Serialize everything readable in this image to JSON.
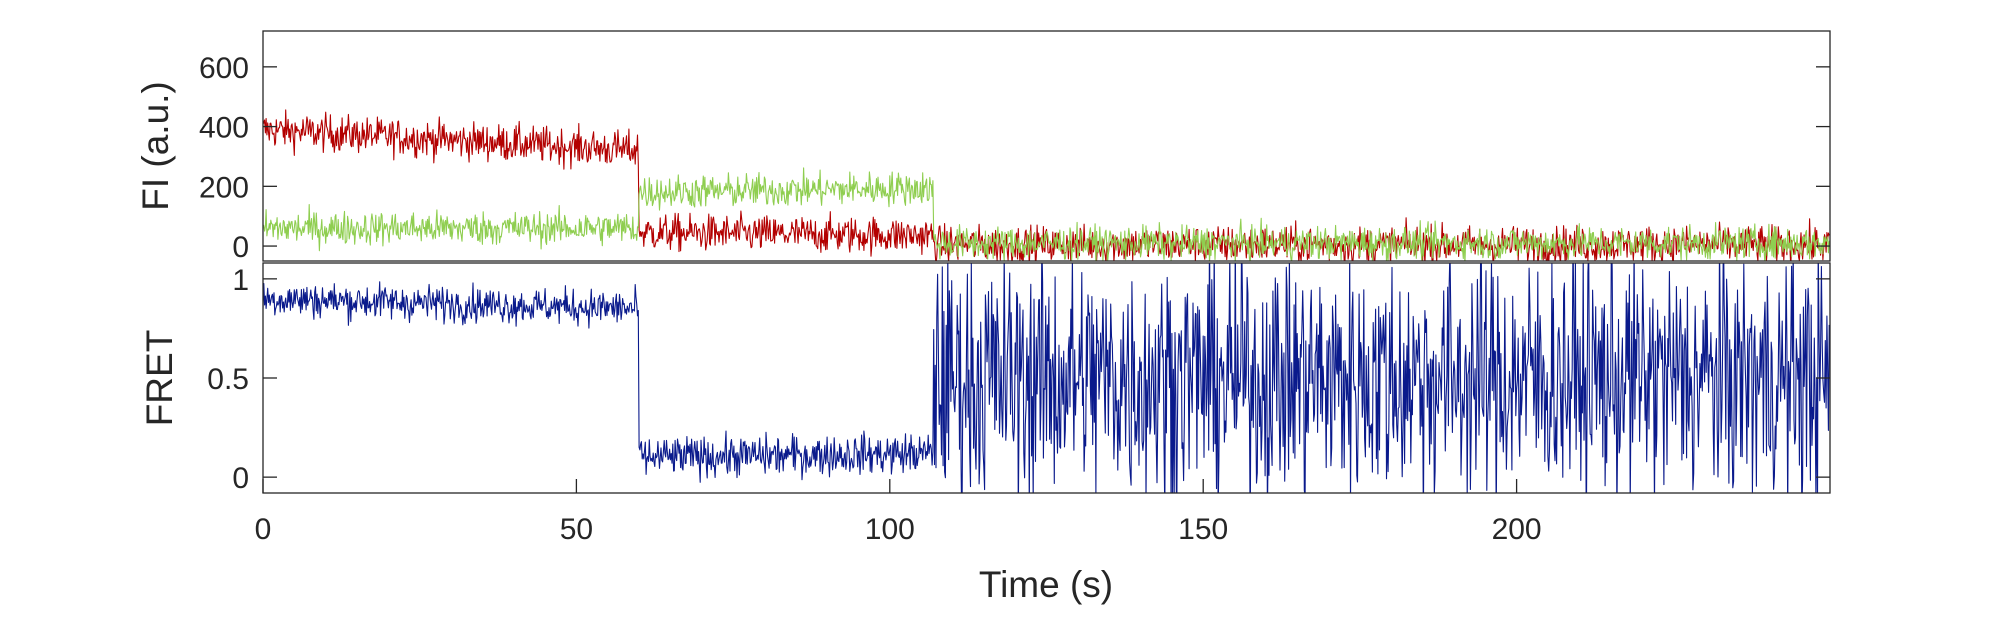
{
  "chart_data": [
    {
      "type": "line",
      "panel": "top",
      "ylabel": "FI (a.u.)",
      "xlim": [
        0,
        250
      ],
      "ylim": [
        -50,
        720
      ],
      "yticks": [
        0,
        200,
        400,
        600
      ],
      "ytick_labels": [
        "0",
        "200",
        "400",
        "600"
      ],
      "series": [
        {
          "color": "#b30000",
          "noise": 55,
          "segments": [
            {
              "x0": 0,
              "x1": 60,
              "y0": 390,
              "y1": 320
            },
            {
              "x0": 60,
              "x1": 107,
              "y0": 45,
              "y1": 35
            },
            {
              "x0": 107,
              "x1": 250,
              "y0": 5,
              "y1": 5
            }
          ]
        },
        {
          "color": "#8fce50",
          "noise": 50,
          "segments": [
            {
              "x0": 0,
              "x1": 60,
              "y0": 60,
              "y1": 60
            },
            {
              "x0": 60,
              "x1": 107,
              "y0": 180,
              "y1": 195
            },
            {
              "x0": 107,
              "x1": 250,
              "y0": 10,
              "y1": 10
            }
          ]
        }
      ]
    },
    {
      "type": "line",
      "panel": "bottom",
      "ylabel": "FRET",
      "xlabel": "Time (s)",
      "xlim": [
        0,
        250
      ],
      "ylim": [
        -0.08,
        1.08
      ],
      "yticks": [
        0,
        0.5,
        1
      ],
      "ytick_labels": [
        "0",
        "0.5",
        "1"
      ],
      "xticks": [
        0,
        50,
        100,
        150,
        200
      ],
      "xtick_labels": [
        "0",
        "50",
        "100",
        "150",
        "200"
      ],
      "series": [
        {
          "color": "#0a1a8c",
          "segments": [
            {
              "x0": 0,
              "x1": 60,
              "y0": 0.9,
              "y1": 0.85,
              "noise": 0.08
            },
            {
              "x0": 60,
              "x1": 107,
              "y0": 0.1,
              "y1": 0.12,
              "noise": 0.09
            },
            {
              "x0": 107,
              "x1": 250,
              "y0": 0.5,
              "y1": 0.5,
              "noise": 0.55
            }
          ]
        }
      ]
    }
  ]
}
